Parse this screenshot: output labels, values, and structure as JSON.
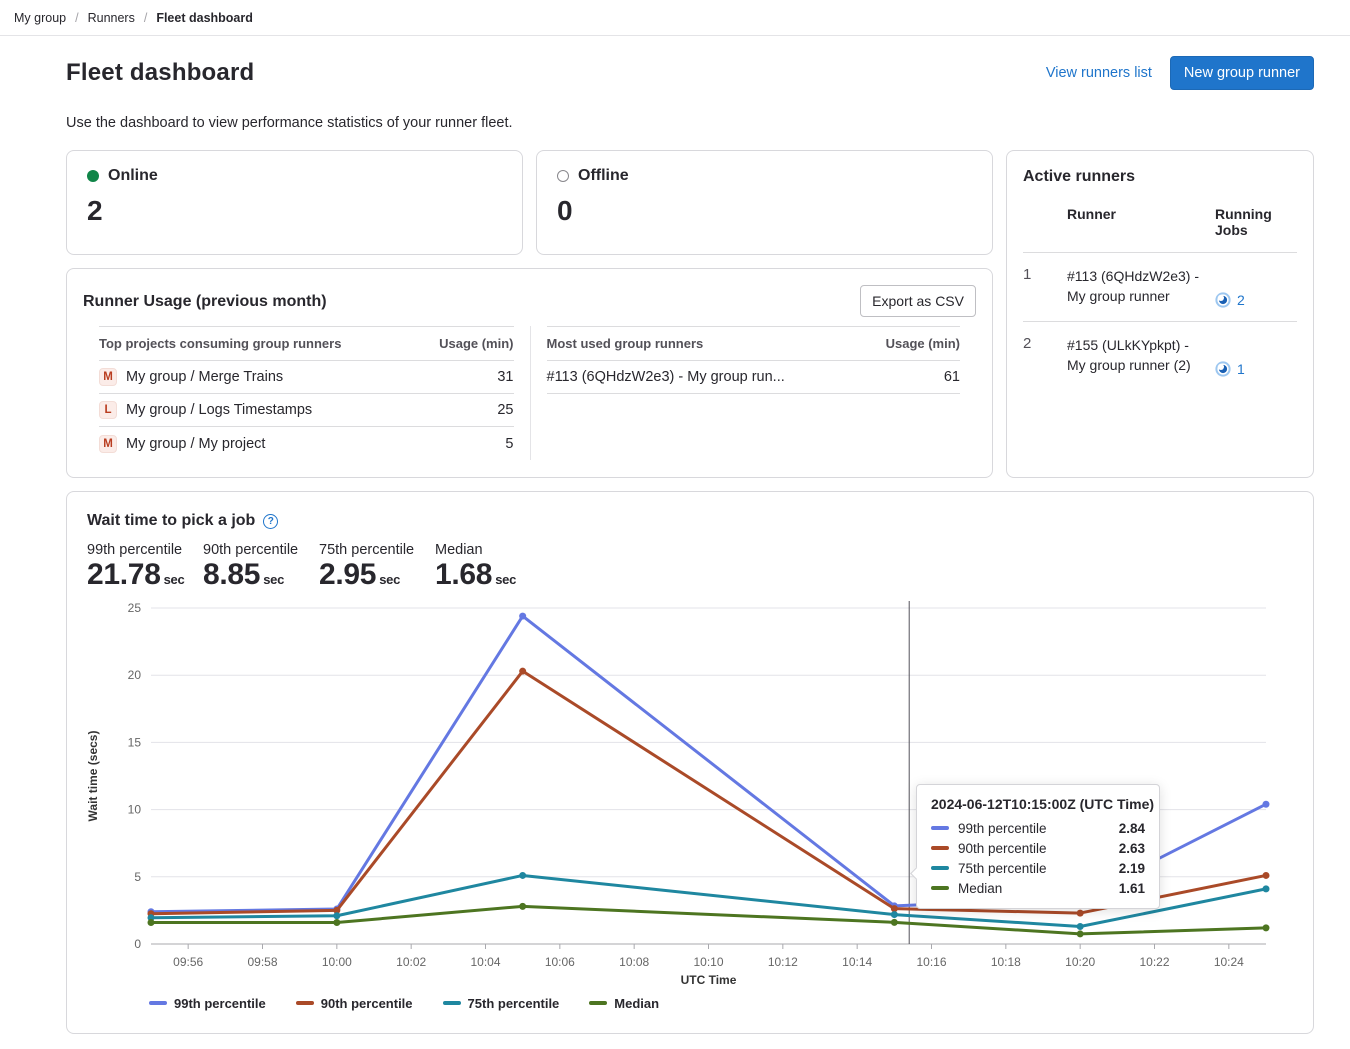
{
  "breadcrumb": {
    "items": [
      "My group",
      "Runners",
      "Fleet dashboard"
    ]
  },
  "header": {
    "title": "Fleet dashboard",
    "view_runners_link": "View runners list",
    "new_runner_button": "New group runner",
    "description": "Use the dashboard to view performance statistics of your runner fleet."
  },
  "status_cards": {
    "online": {
      "label": "Online",
      "value": "2"
    },
    "offline": {
      "label": "Offline",
      "value": "0"
    }
  },
  "active_runners": {
    "title": "Active runners",
    "columns": {
      "runner": "Runner",
      "jobs": "Running Jobs"
    },
    "rows": [
      {
        "index": "1",
        "runner": "#113 (6QHdzW2e3) - My group runner",
        "jobs": "2"
      },
      {
        "index": "2",
        "runner": "#155 (ULkKYpkpt) - My group runner (2)",
        "jobs": "1"
      }
    ]
  },
  "runner_usage": {
    "title": "Runner Usage (previous month)",
    "export_button": "Export as CSV",
    "usage_header": "Usage (min)",
    "top_projects": {
      "header": "Top projects consuming group runners",
      "rows": [
        {
          "avatar": "M",
          "name": "My group / Merge Trains",
          "usage": "31"
        },
        {
          "avatar": "L",
          "name": "My group / Logs Timestamps",
          "usage": "25"
        },
        {
          "avatar": "M",
          "name": "My group / My project",
          "usage": "5"
        }
      ]
    },
    "most_used": {
      "header": "Most used group runners",
      "rows": [
        {
          "name": "#113 (6QHdzW2e3) - My group run...",
          "usage": "61"
        }
      ]
    }
  },
  "wait_time": {
    "title": "Wait time to pick a job",
    "stats": [
      {
        "label": "99th percentile",
        "value": "21.78",
        "unit": "sec"
      },
      {
        "label": "90th percentile",
        "value": "8.85",
        "unit": "sec"
      },
      {
        "label": "75th percentile",
        "value": "2.95",
        "unit": "sec"
      },
      {
        "label": "Median",
        "value": "1.68",
        "unit": "sec"
      }
    ]
  },
  "chart_data": {
    "type": "line",
    "title": "Wait time to pick a job",
    "xlabel": "UTC Time",
    "ylabel": "Wait time (secs)",
    "ylim": [
      0,
      25
    ],
    "yticks": [
      0,
      5,
      10,
      15,
      20,
      25
    ],
    "x_range": [
      "09:55",
      "10:25"
    ],
    "x_ticks": [
      "09:56",
      "09:58",
      "10:00",
      "10:02",
      "10:04",
      "10:06",
      "10:08",
      "10:10",
      "10:12",
      "10:14",
      "10:16",
      "10:18",
      "10:20",
      "10:22",
      "10:24"
    ],
    "x": [
      "09:55",
      "10:00",
      "10:05",
      "10:15",
      "10:20",
      "10:25"
    ],
    "series": [
      {
        "name": "99th percentile",
        "color": "#6478e2",
        "values": [
          2.4,
          2.6,
          24.4,
          2.84,
          3.4,
          10.4
        ]
      },
      {
        "name": "90th percentile",
        "color": "#aa4a28",
        "values": [
          2.25,
          2.5,
          20.3,
          2.63,
          2.3,
          5.1
        ]
      },
      {
        "name": "75th percentile",
        "color": "#1f87a0",
        "values": [
          1.95,
          2.1,
          5.1,
          2.19,
          1.3,
          4.1
        ]
      },
      {
        "name": "Median",
        "color": "#4d7521",
        "values": [
          1.6,
          1.6,
          2.8,
          1.61,
          0.75,
          1.2
        ]
      }
    ],
    "pointer": {
      "offset_min": 20.4
    },
    "tooltip": {
      "title": "2024-06-12T10:15:00Z (UTC Time)",
      "rows": [
        {
          "name": "99th percentile",
          "value": "2.84"
        },
        {
          "name": "90th percentile",
          "value": "2.63"
        },
        {
          "name": "75th percentile",
          "value": "2.19"
        },
        {
          "name": "Median",
          "value": "1.61"
        }
      ]
    },
    "legend_position": "bottom-left",
    "grid": true
  }
}
